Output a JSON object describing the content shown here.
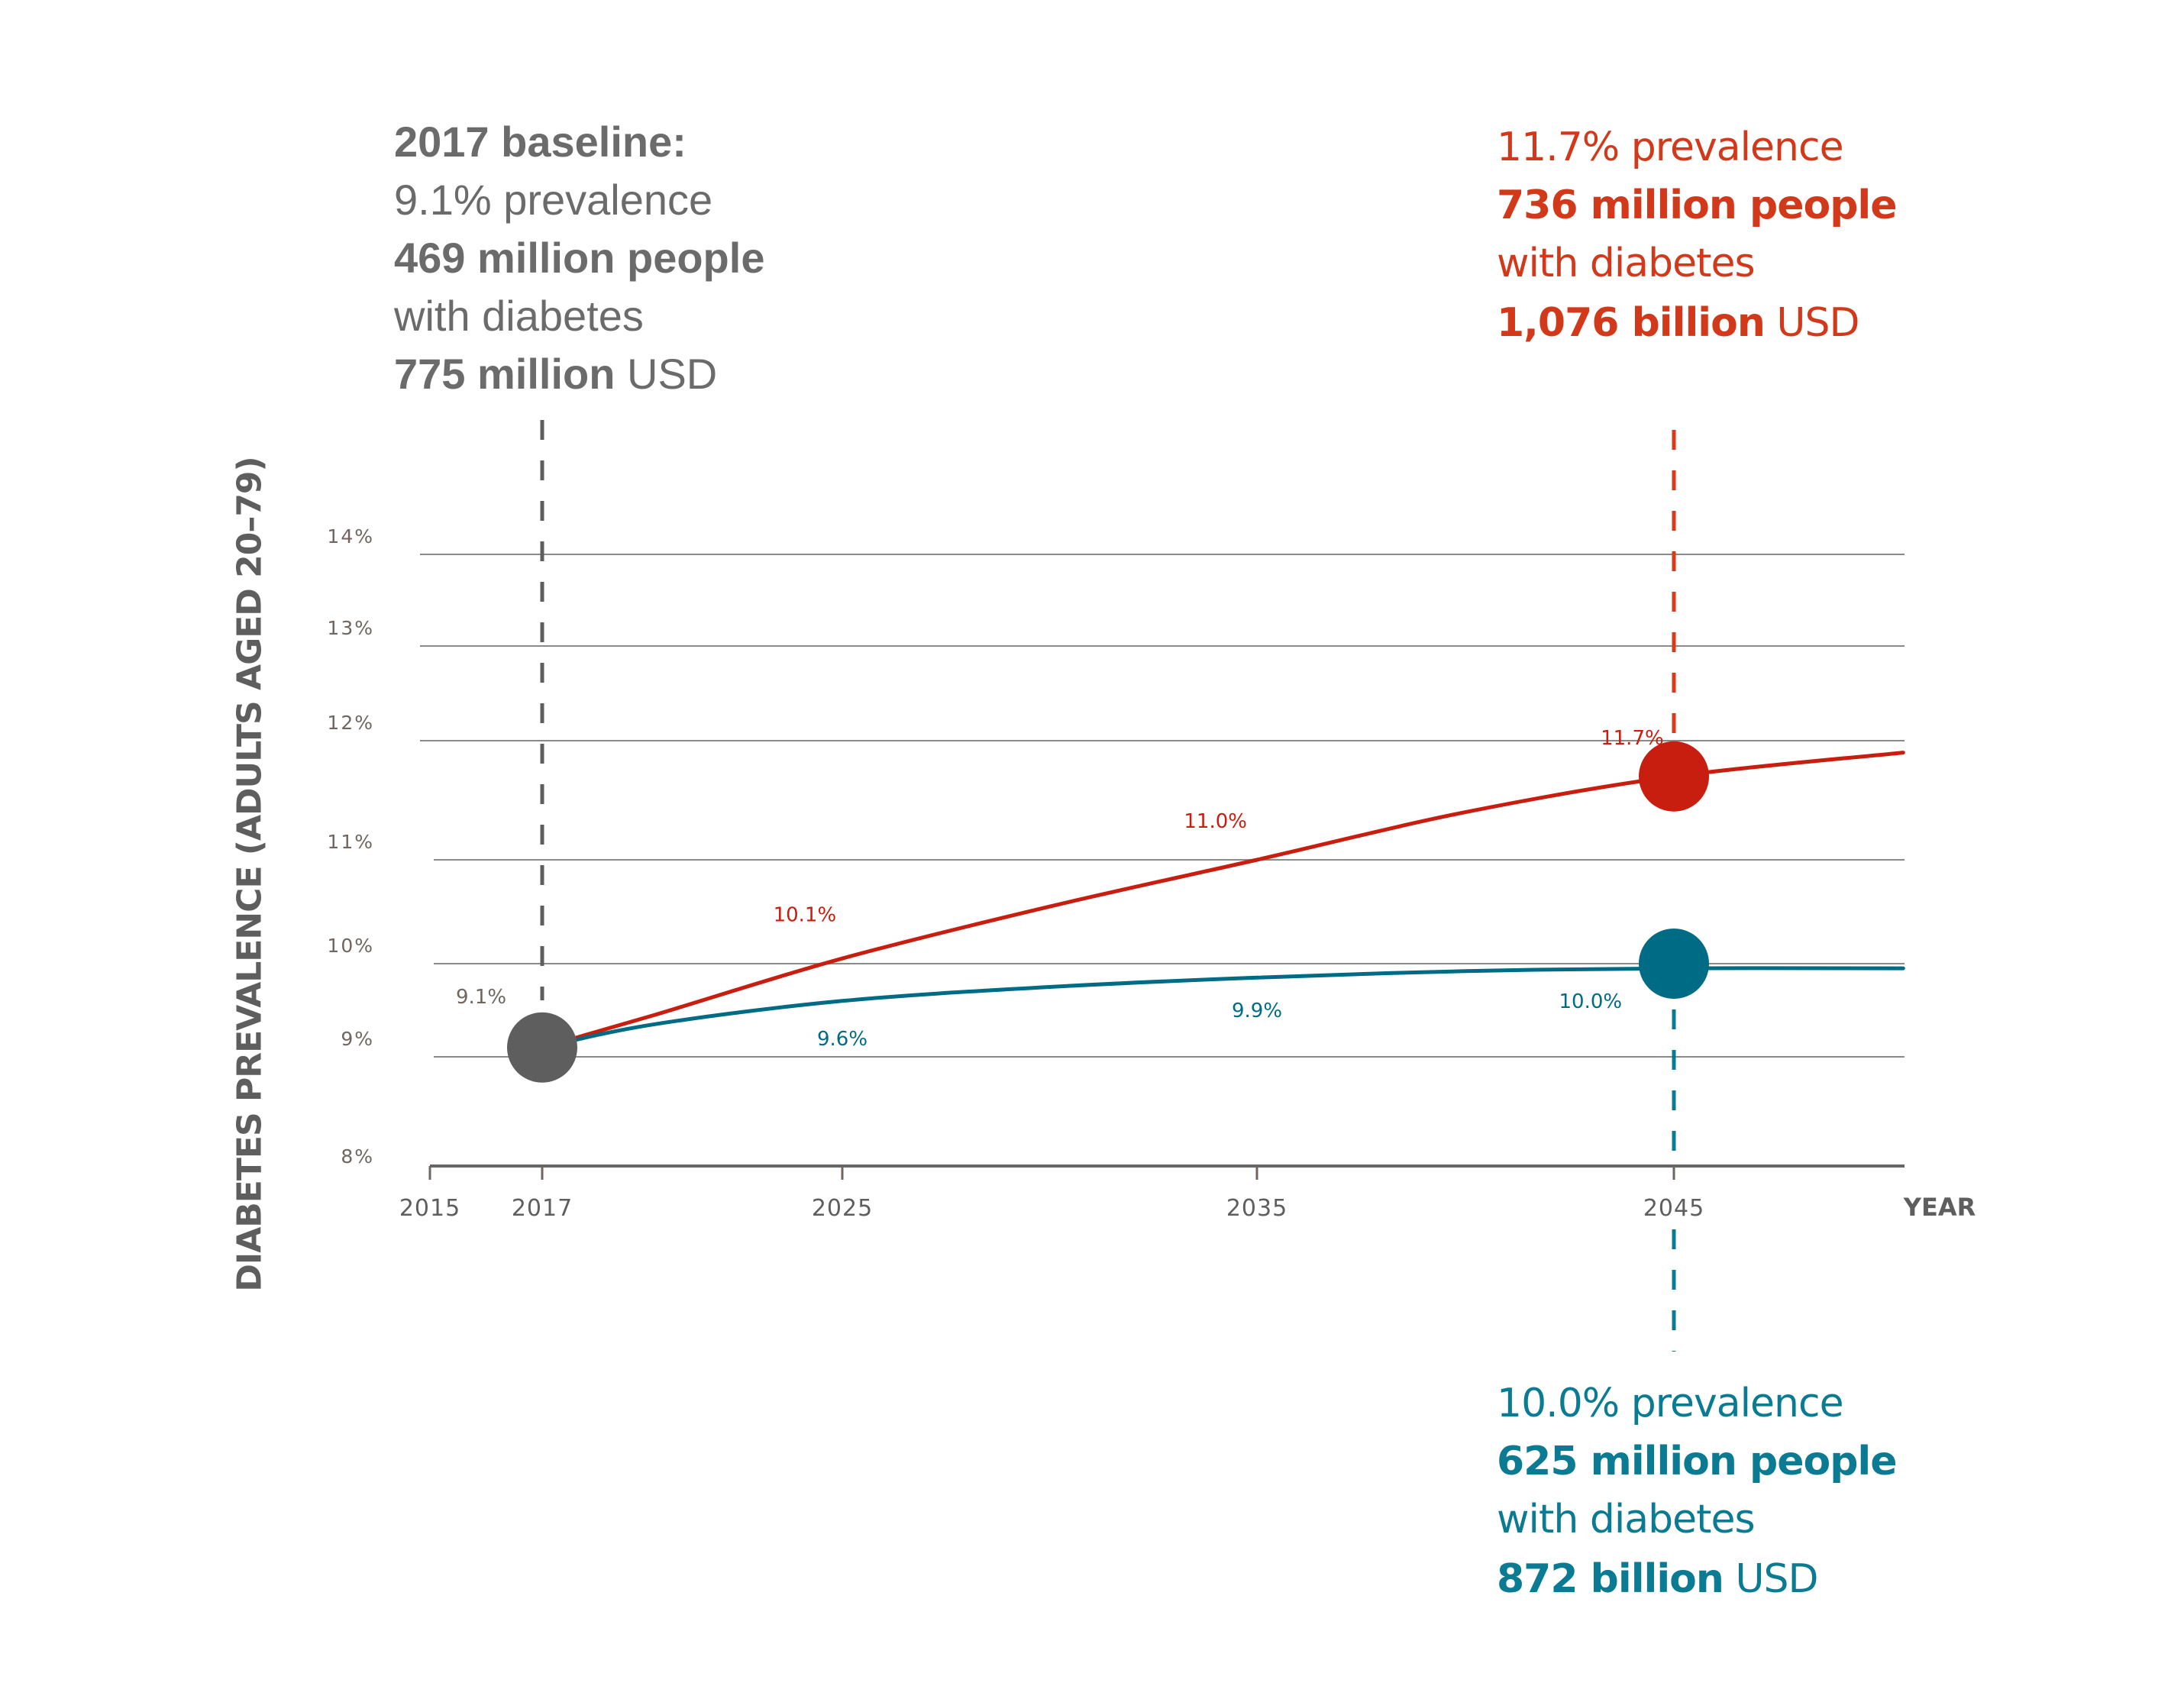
{
  "annotations": {
    "baseline": {
      "title": "2017 baseline:",
      "prevalence": "9.1% prevalence",
      "people_bold": "469 million people",
      "people_rest": "with diabetes",
      "cost_bold": "775 million",
      "cost_rest": " USD"
    },
    "high": {
      "prevalence": "11.7% prevalence",
      "people_bold": "736 million people",
      "people_rest": "with diabetes",
      "cost_bold": "1,076 billion",
      "cost_rest": " USD"
    },
    "low": {
      "prevalence": "10.0% prevalence",
      "people_bold": "625 million people",
      "people_rest": "with diabetes",
      "cost_bold": "872 billion",
      "cost_rest": " USD"
    }
  },
  "colors": {
    "baseline": "#5e5e5e",
    "high": "#c81e0f",
    "high_dash": "#d63a1a",
    "low": "#006b85",
    "low_dash": "#0a7b92",
    "grid": "#8a8a8a",
    "tick_text": "#6f6660"
  },
  "chart_data": {
    "type": "line",
    "title": "",
    "xlabel": "YEAR",
    "ylabel": "DIABETES PREVALENCE (ADULTS AGED 20–79)",
    "x_ticks": [
      "2015",
      "2017",
      "2025",
      "2035",
      "2045"
    ],
    "y_ticks": [
      "8%",
      "9%",
      "10%",
      "11%",
      "12%",
      "13%",
      "14%"
    ],
    "xlim": [
      2015,
      2050.5
    ],
    "ylim": [
      8,
      14
    ],
    "grid": true,
    "series": [
      {
        "name": "high",
        "x": [
          2017,
          2020,
          2025,
          2030,
          2035,
          2040,
          2045,
          2050.5
        ],
        "y": [
          9.1,
          9.45,
          10.05,
          10.55,
          11.0,
          11.4,
          11.7,
          11.9
        ],
        "labels": [
          {
            "x": 2024,
            "y": 10.1,
            "text": "10.1%"
          },
          {
            "x": 2034,
            "y": 11.0,
            "text": "11.0%"
          },
          {
            "x": 2044,
            "y": 11.7,
            "text": "11.7%"
          }
        ]
      },
      {
        "name": "low",
        "x": [
          2017,
          2020,
          2025,
          2030,
          2035,
          2040,
          2045,
          2050.5
        ],
        "y": [
          9.1,
          9.35,
          9.6,
          9.75,
          9.85,
          9.92,
          9.95,
          9.95
        ],
        "labels": [
          {
            "x": 2025,
            "y": 9.6,
            "text": "9.6%"
          },
          {
            "x": 2035,
            "y": 9.9,
            "text": "9.9%"
          },
          {
            "x": 2043,
            "y": 10.0,
            "text": "10.0%"
          }
        ]
      }
    ],
    "points": [
      {
        "name": "baseline",
        "x": 2017,
        "y": 9.1,
        "label": "9.1%"
      },
      {
        "name": "high",
        "x": 2045,
        "y": 11.7
      },
      {
        "name": "low",
        "x": 2045,
        "y": 10.0
      }
    ]
  }
}
